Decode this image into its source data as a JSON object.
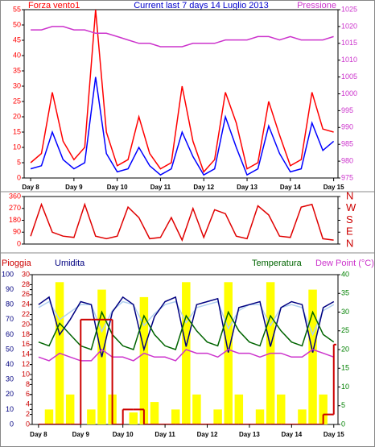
{
  "chart_data": [
    {
      "type": "line",
      "title": "Current last 7 days 14 Luglio 2013",
      "x": [
        8,
        8.25,
        8.5,
        8.75,
        9,
        9.25,
        9.5,
        9.75,
        10,
        10.25,
        10.5,
        10.75,
        11,
        11.25,
        11.5,
        11.75,
        12,
        12.25,
        12.5,
        12.75,
        13,
        13.25,
        13.5,
        13.75,
        14,
        14.25,
        14.5,
        14.75,
        15
      ],
      "xlim": [
        7.85,
        15.1
      ],
      "xticks": [
        {
          "value": 8,
          "label": "Day 8"
        },
        {
          "value": 9,
          "label": "Day 9"
        },
        {
          "value": 10,
          "label": "Day 10"
        },
        {
          "value": 11,
          "label": "Day 11"
        },
        {
          "value": 12,
          "label": "Day 12"
        },
        {
          "value": 13,
          "label": "Day 13"
        },
        {
          "value": 14,
          "label": "Day 14"
        },
        {
          "value": 15,
          "label": "Day 15"
        }
      ],
      "ylim": [
        0,
        55
      ],
      "yticks": [
        0,
        5,
        10,
        15,
        20,
        25,
        30,
        35,
        40,
        45,
        50,
        55
      ],
      "y2lim": [
        975,
        1025
      ],
      "y2ticks": [
        975,
        980,
        985,
        990,
        995,
        1000,
        1005,
        1010,
        1015,
        1020,
        1025
      ],
      "axis_colors": {
        "y": "#ff0000",
        "y2": "#cc33cc"
      },
      "series": [
        {
          "name": "Forza vento1",
          "color": "#ff0000",
          "values": [
            5,
            8,
            28,
            12,
            6,
            10,
            55,
            15,
            4,
            6,
            20,
            8,
            3,
            5,
            30,
            12,
            2,
            6,
            28,
            18,
            3,
            5,
            25,
            14,
            4,
            6,
            28,
            16,
            15
          ]
        },
        {
          "color": "#0000ff",
          "values": [
            3,
            4,
            15,
            6,
            3,
            5,
            33,
            8,
            2,
            3,
            10,
            4,
            1,
            3,
            15,
            7,
            1,
            3,
            20,
            10,
            1,
            3,
            17,
            8,
            2,
            3,
            18,
            9,
            12
          ]
        },
        {
          "name": "Pressione",
          "color": "#cc33cc",
          "axis": "y2",
          "values": [
            1019,
            1019,
            1020,
            1020,
            1019,
            1019,
            1018,
            1018,
            1017,
            1016,
            1015,
            1015,
            1014,
            1014,
            1014,
            1015,
            1015,
            1015,
            1016,
            1016,
            1016,
            1017,
            1017,
            1016,
            1017,
            1016,
            1016,
            1016,
            1017
          ]
        }
      ]
    },
    {
      "type": "line",
      "x": [
        8,
        8.25,
        8.5,
        8.75,
        9,
        9.25,
        9.5,
        9.75,
        10,
        10.25,
        10.5,
        10.75,
        11,
        11.25,
        11.5,
        11.75,
        12,
        12.25,
        12.5,
        12.75,
        13,
        13.25,
        13.5,
        13.75,
        14,
        14.25,
        14.5,
        14.75,
        15
      ],
      "xlim": [
        7.85,
        15.1
      ],
      "ylim": [
        0,
        360
      ],
      "yticks": [
        0,
        90,
        180,
        270,
        360
      ],
      "y2lim": [
        0,
        360
      ],
      "y2ticks": [
        {
          "value": 0,
          "label": "N"
        },
        {
          "value": 90,
          "label": "E"
        },
        {
          "value": 180,
          "label": "S"
        },
        {
          "value": 270,
          "label": "W"
        },
        {
          "value": 360,
          "label": "N"
        }
      ],
      "axis_colors": {
        "y": "#ff0000",
        "y2": "#cc0000"
      },
      "series": [
        {
          "color": "#e00000",
          "values": [
            60,
            300,
            90,
            60,
            50,
            300,
            60,
            40,
            60,
            280,
            200,
            40,
            50,
            200,
            30,
            270,
            50,
            260,
            230,
            60,
            40,
            290,
            220,
            60,
            50,
            280,
            300,
            40,
            30
          ]
        }
      ]
    },
    {
      "type": "line",
      "x": [
        8,
        8.25,
        8.5,
        8.75,
        9,
        9.25,
        9.5,
        9.75,
        10,
        10.25,
        10.5,
        10.75,
        11,
        11.25,
        11.5,
        11.75,
        12,
        12.25,
        12.5,
        12.75,
        13,
        13.25,
        13.5,
        13.75,
        14,
        14.25,
        14.5,
        14.75,
        15
      ],
      "xlim": [
        7.85,
        15.1
      ],
      "xticks": [
        {
          "value": 8,
          "label": "Day 8"
        },
        {
          "value": 9,
          "label": "Day 9"
        },
        {
          "value": 10,
          "label": "Day 10"
        },
        {
          "value": 11,
          "label": "Day 11"
        },
        {
          "value": 12,
          "label": "Day 12"
        },
        {
          "value": 13,
          "label": "Day 13"
        },
        {
          "value": 14,
          "label": "Day 14"
        },
        {
          "value": 15,
          "label": "Day 15"
        }
      ],
      "ylim": [
        0,
        30
      ],
      "yticks": [
        0,
        2,
        4,
        6,
        8,
        10,
        12,
        14,
        16,
        18,
        20,
        22,
        24,
        26,
        28,
        30
      ],
      "y2lim": [
        0,
        40
      ],
      "y2ticks": [
        0,
        5,
        10,
        15,
        20,
        25,
        30,
        35,
        40
      ],
      "y3lim": [
        0,
        100
      ],
      "y3ticks": [
        0,
        10,
        20,
        30,
        40,
        50,
        60,
        70,
        80,
        90,
        100
      ],
      "axis_colors": {
        "y": "#cc0000",
        "y2": "#008000",
        "y3": "#000080"
      },
      "series": [
        {
          "color": "#ffff00",
          "axis": "y3",
          "style": "bars",
          "values": [
            0,
            10,
            95,
            20,
            0,
            10,
            90,
            20,
            0,
            8,
            85,
            15,
            0,
            10,
            95,
            20,
            0,
            10,
            95,
            20,
            0,
            10,
            95,
            20,
            0,
            10,
            90,
            20,
            0
          ]
        },
        {
          "color": "#b0d0f0",
          "axis": "y3",
          "values": [
            78,
            82,
            70,
            75,
            80,
            80,
            62,
            76,
            82,
            80,
            66,
            74,
            80,
            82,
            68,
            78,
            80,
            82,
            64,
            76,
            80,
            80,
            66,
            78,
            80,
            78,
            60,
            76,
            80
          ]
        },
        {
          "name": "Umidita",
          "color": "#000080",
          "axis": "y3",
          "values": [
            80,
            85,
            60,
            70,
            82,
            80,
            45,
            75,
            85,
            80,
            50,
            72,
            82,
            85,
            52,
            80,
            82,
            84,
            48,
            78,
            80,
            82,
            52,
            78,
            82,
            80,
            48,
            78,
            82
          ]
        },
        {
          "name": "Temperatura",
          "color": "#006400",
          "axis": "y2",
          "values": [
            22,
            21,
            27,
            24,
            21,
            20,
            30,
            24,
            21,
            20,
            29,
            24,
            21,
            20,
            29,
            25,
            22,
            21,
            30,
            25,
            22,
            21,
            29,
            25,
            22,
            21,
            30,
            24,
            22
          ]
        },
        {
          "name": "Dew Point (°C)",
          "color": "#cc33cc",
          "axis": "y2",
          "values": [
            18,
            17,
            19,
            18,
            17,
            17,
            20,
            18,
            18,
            17,
            19,
            18,
            18,
            17,
            20,
            19,
            19,
            18,
            20,
            19,
            19,
            18,
            19,
            19,
            18,
            18,
            20,
            19,
            18
          ]
        },
        {
          "name": "Pioggia",
          "color": "#cc0000",
          "axis": "y",
          "style": "step",
          "values": [
            0,
            0,
            0,
            0,
            21,
            21,
            21,
            0,
            3,
            3,
            0,
            0,
            0,
            0,
            0,
            0,
            0,
            0,
            0,
            0,
            0,
            0,
            0,
            0,
            0,
            0,
            0,
            2,
            16
          ]
        }
      ]
    }
  ]
}
